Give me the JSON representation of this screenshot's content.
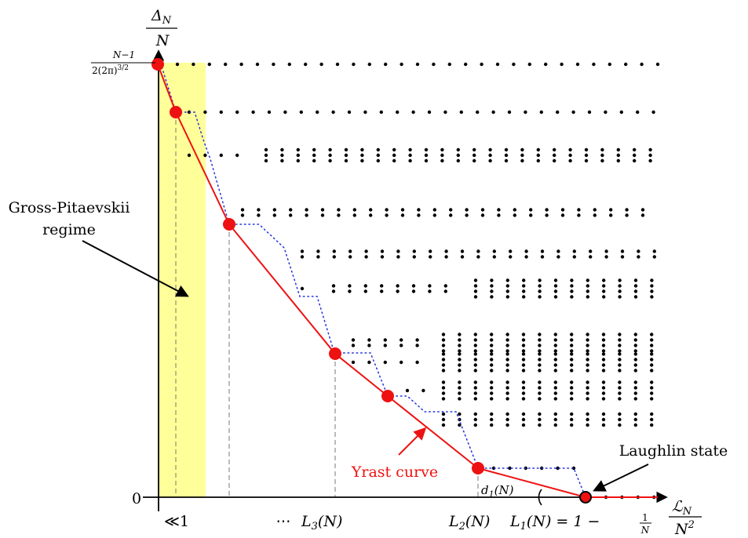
{
  "y_axis": {
    "label_top": "Δ",
    "label_top_sub": "N",
    "label_bottom": "N",
    "tick_top_numerator": "N−1",
    "tick_top_denominator": "2(2π)",
    "tick_top_denominator_sup": "3/2",
    "tick_zero": "0"
  },
  "x_axis": {
    "label_top": "ℒ",
    "label_top_sub": "N",
    "label_bottom": "N",
    "label_bottom_sup": "2",
    "tick_small": "≪1",
    "tick_dots": "⋯",
    "tick_L3": "L",
    "tick_L3_sub": "3",
    "tick_L3_arg": "(N)",
    "tick_L2": "L",
    "tick_L2_sub": "2",
    "tick_L2_arg": "(N)",
    "tick_L1": "L",
    "tick_L1_sub": "1",
    "tick_L1_arg": "(N) = 1 −",
    "tick_L1_frac_num": "1",
    "tick_L1_frac_den": "N"
  },
  "annotations": {
    "gp_line1": "Gross-Pitaevskii",
    "gp_line2": "regime",
    "yrast": "Yrast curve",
    "laughlin": "Laughlin state",
    "d1": "d",
    "d1_sub": "1",
    "d1_arg": "(N)"
  },
  "colors": {
    "yrast": "#ee1111",
    "highlight": "#ffff99",
    "dotted": "#2233dd",
    "dots": "#000000"
  },
  "dot_rows": [
    {
      "sets": [
        [
          226,
          838,
          1
        ]
      ]
    },
    {
      "sets": [
        [
          241,
          838,
          1
        ]
      ]
    },
    {
      "sets": [
        [
          241,
          318,
          1
        ],
        [
          339,
          838,
          3
        ]
      ]
    },
    {
      "sets": [
        [
          309,
          838,
          2
        ]
      ]
    },
    {
      "sets": [
        [
          385,
          838,
          2
        ]
      ]
    },
    {
      "sets": [
        [
          385,
          404,
          1
        ],
        [
          425,
          583,
          2
        ],
        [
          606,
          838,
          4
        ]
      ]
    },
    {
      "sets": [
        [
          450,
          543,
          2
        ],
        [
          565,
          838,
          4
        ]
      ]
    },
    {
      "sets": [
        [
          450,
          543,
          1
        ],
        [
          565,
          838,
          4
        ]
      ]
    },
    {
      "sets": [
        [
          519,
          543,
          1
        ],
        [
          565,
          838,
          4
        ]
      ]
    },
    {
      "sets": [
        [
          565,
          838,
          3
        ]
      ]
    },
    {
      "sets": [
        [
          629,
          731,
          1
        ]
      ]
    },
    {
      "sets": [
        [
          772,
          838,
          1
        ]
      ]
    }
  ]
}
